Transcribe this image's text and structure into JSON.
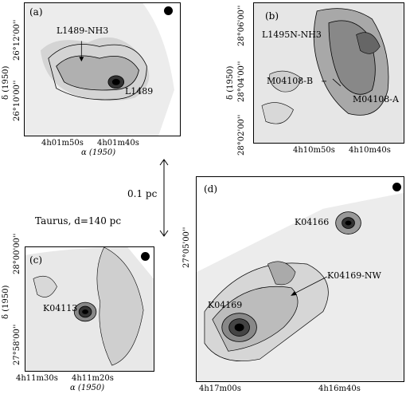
{
  "panels": {
    "a": {
      "label": "(a)",
      "sources": [
        "L1489-NH3",
        "L1489"
      ],
      "yticks": [
        "26°12'00''",
        "26°10'00''"
      ],
      "xticks": [
        "4h01m50s",
        "4h01m40s"
      ],
      "ylabel": "δ (1950)",
      "xlabel": "α (1950)"
    },
    "b": {
      "label": "(b)",
      "sources": [
        "L1495N-NH3",
        "M04108-B",
        "M04108-A"
      ],
      "yticks": [
        "28°06'00''",
        "28°04'00''",
        "28°02'00''"
      ],
      "xticks": [
        "4h10m50s",
        "4h10m40s"
      ],
      "ylabel": "δ (1950)"
    },
    "c": {
      "label": "(c)",
      "sources": [
        "K04113"
      ],
      "yticks": [
        "28°00'00''",
        "27°58'00''"
      ],
      "xticks": [
        "4h11m30s",
        "4h11m20s"
      ],
      "ylabel": "δ (1950)",
      "xlabel": "α (1950)"
    },
    "d": {
      "label": "(d)",
      "sources": [
        "K04166",
        "K04169-NW",
        "K04169"
      ],
      "yticks": [
        "27°05'00''"
      ],
      "xticks": [
        "4h17m00s",
        "4h16m40s"
      ]
    }
  },
  "scale": {
    "length": "0.1 pc",
    "note": "Taurus, d=140 pc"
  },
  "colors": {
    "ink": "#000000",
    "field": "#e8e8e8",
    "emission": "#9a9a9a"
  }
}
